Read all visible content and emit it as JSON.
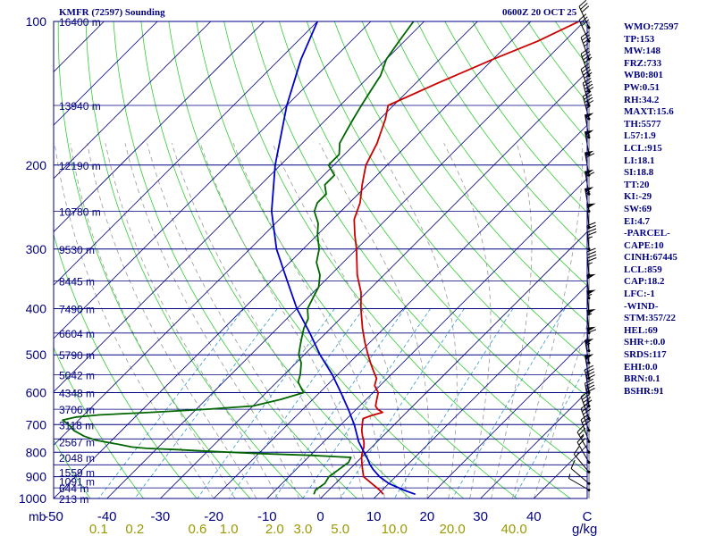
{
  "header": {
    "station": "KMFR (72597) Sounding",
    "time": "0600Z 20 OCT 25"
  },
  "indices": [
    "WMO:72597",
    "TP:153",
    "MW:148",
    "FRZ:733",
    "WB0:801",
    "PW:0.51",
    "RH:34.2",
    "MAXT:15.6",
    "TH:5577",
    "L57:1.9",
    "LCL:915",
    "LI:18.1",
    "SI:18.8",
    "TT:20",
    "KI:-29",
    "SW:69",
    "EI:4.7",
    "-PARCEL-",
    "CAPE:10",
    "CINH:67445",
    "LCL:859",
    "CAP:18.2",
    "LFC:-1",
    "-WIND-",
    "STM:357/22",
    "HEL:69",
    "SHR+:0.0",
    "SRDS:117",
    "EHI:0.0",
    "BRN:0.1",
    "BSHR:91"
  ],
  "chart_data": {
    "type": "line",
    "subtype": "skew-T log-P sounding",
    "pressure_unit_label": "mb",
    "mixing_ratio_unit_label": "g/kg",
    "pressure_range": [
      100,
      1000
    ],
    "temperature_range": [
      -50,
      50
    ],
    "pressure_ticks": [
      100,
      200,
      300,
      400,
      500,
      600,
      700,
      800,
      900,
      1000
    ],
    "temperature_ticks": [
      "-50",
      "-40",
      "-30",
      "-20",
      "-10",
      "0",
      "10",
      "20",
      "30",
      "40",
      "C"
    ],
    "mixing_ratio_labels": [
      {
        "label": "0.1",
        "g": 0.1
      },
      {
        "label": "0.2",
        "g": 0.2
      },
      {
        "label": "0.6",
        "g": 0.6
      },
      {
        "label": "1.0",
        "g": 1.0
      },
      {
        "label": "2.0",
        "g": 2.0
      },
      {
        "label": "3.0",
        "g": 3.0
      },
      {
        "label": "5.0",
        "g": 5.0
      },
      {
        "label": "10.0",
        "g": 10.0
      },
      {
        "label": "20.0",
        "g": 20.0
      },
      {
        "label": "40.0",
        "g": 40.0
      }
    ],
    "height_labels": [
      {
        "p": 1000,
        "label": "213 m"
      },
      {
        "p": 950,
        "label": "644 m"
      },
      {
        "p": 920,
        "label": "1091 m"
      },
      {
        "p": 880,
        "label": "1559 m"
      },
      {
        "p": 820,
        "label": "2048 m"
      },
      {
        "p": 760,
        "label": "2567 m"
      },
      {
        "p": 700,
        "label": "3118 m"
      },
      {
        "p": 650,
        "label": "3706 m"
      },
      {
        "p": 600,
        "label": "4348 m"
      },
      {
        "p": 550,
        "label": "5042 m"
      },
      {
        "p": 500,
        "label": "5790 m"
      },
      {
        "p": 450,
        "label": "6604 m"
      },
      {
        "p": 400,
        "label": "7490 m"
      },
      {
        "p": 350,
        "label": "8445 m"
      },
      {
        "p": 300,
        "label": "9530 m"
      },
      {
        "p": 250,
        "label": "10780 m"
      },
      {
        "p": 200,
        "label": "12190 m"
      },
      {
        "p": 150,
        "label": "13940 m"
      },
      {
        "p": 100,
        "label": "16400 m"
      }
    ],
    "series": [
      {
        "name": "temperature",
        "color": "#cc0000",
        "points": [
          [
            980,
            11
          ],
          [
            960,
            9.5
          ],
          [
            930,
            6.8
          ],
          [
            900,
            4
          ],
          [
            870,
            2.5
          ],
          [
            850,
            1.5
          ],
          [
            820,
            0
          ],
          [
            800,
            -0.8
          ],
          [
            780,
            -1.5
          ],
          [
            760,
            -2.5
          ],
          [
            740,
            -3.8
          ],
          [
            720,
            -5
          ],
          [
            700,
            -6
          ],
          [
            690,
            -6.5
          ],
          [
            680,
            -7
          ],
          [
            670,
            -6
          ],
          [
            660,
            -4.5
          ],
          [
            650,
            -6
          ],
          [
            640,
            -7
          ],
          [
            620,
            -8
          ],
          [
            600,
            -9
          ],
          [
            580,
            -11
          ],
          [
            560,
            -12
          ],
          [
            540,
            -14
          ],
          [
            520,
            -16
          ],
          [
            500,
            -18
          ],
          [
            470,
            -21
          ],
          [
            440,
            -24
          ],
          [
            400,
            -28
          ],
          [
            370,
            -31
          ],
          [
            340,
            -35
          ],
          [
            300,
            -40
          ],
          [
            280,
            -43
          ],
          [
            260,
            -46
          ],
          [
            240,
            -48
          ],
          [
            220,
            -51
          ],
          [
            200,
            -54
          ],
          [
            180,
            -56
          ],
          [
            160,
            -59
          ],
          [
            150,
            -61
          ],
          [
            135,
            -56
          ],
          [
            120,
            -50
          ],
          [
            110,
            -45
          ],
          [
            100,
            -41
          ]
        ]
      },
      {
        "name": "dewpoint",
        "color": "#006600",
        "points": [
          [
            980,
            -2
          ],
          [
            960,
            -2.5
          ],
          [
            930,
            -2
          ],
          [
            900,
            -2.5
          ],
          [
            870,
            -2
          ],
          [
            840,
            -1.5
          ],
          [
            820,
            -2
          ],
          [
            812,
            -10
          ],
          [
            805,
            -20
          ],
          [
            795,
            -31
          ],
          [
            790,
            -36
          ],
          [
            785,
            -42
          ],
          [
            780,
            -45
          ],
          [
            770,
            -48
          ],
          [
            755,
            -53
          ],
          [
            740,
            -56
          ],
          [
            720,
            -59
          ],
          [
            700,
            -61
          ],
          [
            685,
            -63
          ],
          [
            675,
            -61
          ],
          [
            668,
            -57
          ],
          [
            660,
            -48
          ],
          [
            650,
            -38
          ],
          [
            640,
            -30
          ],
          [
            620,
            -26
          ],
          [
            600,
            -23
          ],
          [
            590,
            -24
          ],
          [
            570,
            -26
          ],
          [
            550,
            -27
          ],
          [
            520,
            -29
          ],
          [
            500,
            -31
          ],
          [
            470,
            -33
          ],
          [
            440,
            -35
          ],
          [
            420,
            -36
          ],
          [
            400,
            -38
          ],
          [
            380,
            -39
          ],
          [
            360,
            -40
          ],
          [
            340,
            -42
          ],
          [
            320,
            -45
          ],
          [
            300,
            -47
          ],
          [
            280,
            -50
          ],
          [
            265,
            -52
          ],
          [
            250,
            -55
          ],
          [
            240,
            -56
          ],
          [
            230,
            -56
          ],
          [
            220,
            -58
          ],
          [
            210,
            -58
          ],
          [
            200,
            -61
          ],
          [
            190,
            -61
          ],
          [
            180,
            -63
          ],
          [
            170,
            -64
          ],
          [
            160,
            -65
          ],
          [
            150,
            -66
          ],
          [
            140,
            -67
          ],
          [
            130,
            -68
          ],
          [
            120,
            -70
          ],
          [
            110,
            -71
          ],
          [
            100,
            -72
          ]
        ]
      },
      {
        "name": "parcel",
        "color": "#0000cc",
        "points": [
          [
            980,
            17
          ],
          [
            960,
            14
          ],
          [
            930,
            10
          ],
          [
            900,
            7
          ],
          [
            870,
            4.5
          ],
          [
            850,
            3
          ],
          [
            820,
            1
          ],
          [
            800,
            -0.5
          ],
          [
            760,
            -3.5
          ],
          [
            700,
            -7.5
          ],
          [
            650,
            -11.5
          ],
          [
            600,
            -16
          ],
          [
            550,
            -21
          ],
          [
            500,
            -27
          ],
          [
            450,
            -33
          ],
          [
            400,
            -40
          ],
          [
            350,
            -47
          ],
          [
            300,
            -55
          ],
          [
            250,
            -63
          ],
          [
            200,
            -71
          ],
          [
            150,
            -80
          ],
          [
            120,
            -86
          ],
          [
            100,
            -90
          ]
        ]
      }
    ],
    "wind_barbs": [
      {
        "p": 960,
        "dir": 300,
        "spd": 5
      },
      {
        "p": 930,
        "dir": 310,
        "spd": 10
      },
      {
        "p": 880,
        "dir": 320,
        "spd": 15
      },
      {
        "p": 840,
        "dir": 330,
        "spd": 20
      },
      {
        "p": 800,
        "dir": 330,
        "spd": 25
      },
      {
        "p": 760,
        "dir": 340,
        "spd": 30
      },
      {
        "p": 720,
        "dir": 340,
        "spd": 35
      },
      {
        "p": 680,
        "dir": 340,
        "spd": 40
      },
      {
        "p": 640,
        "dir": 350,
        "spd": 40
      },
      {
        "p": 600,
        "dir": 350,
        "spd": 45
      },
      {
        "p": 560,
        "dir": 350,
        "spd": 50
      },
      {
        "p": 520,
        "dir": 350,
        "spd": 55
      },
      {
        "p": 490,
        "dir": 355,
        "spd": 60
      },
      {
        "p": 450,
        "dir": 355,
        "spd": 55
      },
      {
        "p": 410,
        "dir": 355,
        "spd": 55
      },
      {
        "p": 380,
        "dir": 355,
        "spd": 50
      },
      {
        "p": 340,
        "dir": 355,
        "spd": 45
      },
      {
        "p": 300,
        "dir": 355,
        "spd": 45
      },
      {
        "p": 270,
        "dir": 355,
        "spd": 50
      },
      {
        "p": 250,
        "dir": 350,
        "spd": 55
      },
      {
        "p": 230,
        "dir": 350,
        "spd": 60
      },
      {
        "p": 210,
        "dir": 350,
        "spd": 60
      },
      {
        "p": 190,
        "dir": 350,
        "spd": 55
      },
      {
        "p": 175,
        "dir": 350,
        "spd": 50
      },
      {
        "p": 160,
        "dir": 345,
        "spd": 45
      },
      {
        "p": 150,
        "dir": 345,
        "spd": 40
      },
      {
        "p": 140,
        "dir": 340,
        "spd": 40
      },
      {
        "p": 130,
        "dir": 340,
        "spd": 40
      },
      {
        "p": 120,
        "dir": 340,
        "spd": 35
      },
      {
        "p": 110,
        "dir": 335,
        "spd": 30
      },
      {
        "p": 103,
        "dir": 335,
        "spd": 30
      }
    ]
  }
}
